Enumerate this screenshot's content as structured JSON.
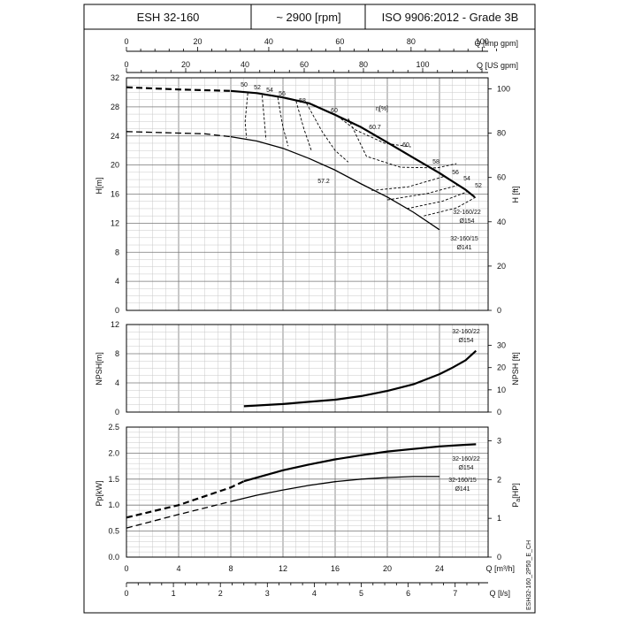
{
  "header": {
    "model": "ESH 32-160",
    "speed": "~ 2900 [rpm]",
    "standard": "ISO 9906:2012 - Grade 3B"
  },
  "axes": {
    "q_imp_label": "Q [Imp gpm]",
    "q_us_label": "Q [US gpm]",
    "q_m3h_label": "Q [m³/h]",
    "q_ls_label": "Q [l/s]",
    "h_m_label": "H[m]",
    "h_ft_label": "H [ft]",
    "npsh_m_label": "NPSH[m]",
    "npsh_ft_label": "NPSH [ft]",
    "p_kw_label": "Pp[kW]",
    "p_hp_label": "P",
    "p_hp_sub": "a",
    "p_hp_unit": "[HP]",
    "eta_label": "η[%]"
  },
  "ticks": {
    "q_imp": [
      "0",
      "20",
      "40",
      "60",
      "80",
      "100"
    ],
    "q_us": [
      "0",
      "20",
      "40",
      "60",
      "80",
      "100"
    ],
    "q_m3h": [
      "0",
      "4",
      "8",
      "12",
      "16",
      "20",
      "24"
    ],
    "q_ls": [
      "0",
      "1",
      "2",
      "3",
      "4",
      "5",
      "6",
      "7"
    ],
    "h_m": [
      "0",
      "4",
      "8",
      "12",
      "16",
      "20",
      "24",
      "28",
      "32"
    ],
    "h_ft": [
      "0",
      "20",
      "40",
      "60",
      "80",
      "100"
    ],
    "npsh_m": [
      "0",
      "4",
      "8",
      "12"
    ],
    "npsh_ft": [
      "0",
      "10",
      "20",
      "30"
    ],
    "p_kw": [
      "0.0",
      "0.5",
      "1.0",
      "1.5",
      "2.0",
      "2.5"
    ],
    "p_hp": [
      "0",
      "1",
      "2",
      "3"
    ]
  },
  "labels": {
    "impeller_large": [
      "32-160/22",
      "Ø154"
    ],
    "impeller_small": [
      "32-160/15",
      "Ø141"
    ],
    "eff_top": [
      "50",
      "52",
      "54",
      "56",
      "58",
      "60",
      "60.7",
      "60",
      "58",
      "56",
      "54",
      "52"
    ],
    "eff_low": "57.2"
  },
  "drawing_code": "ESH32-160_2P50_E_CH",
  "chart_data": [
    {
      "type": "line",
      "title": "",
      "xlabel": "Q [m³/h]",
      "ylabel": "H[m]",
      "xlim": [
        0,
        28
      ],
      "ylim": [
        0,
        32
      ],
      "series": [
        {
          "name": "32-160/22 Ø154",
          "x": [
            0,
            4,
            8,
            10,
            12,
            14,
            16,
            18,
            20,
            22,
            24,
            26,
            26.7
          ],
          "y": [
            30.7,
            30.4,
            30.2,
            29.9,
            29.3,
            28.5,
            26.9,
            25.2,
            23.1,
            21.0,
            18.9,
            16.6,
            15.6
          ]
        },
        {
          "name": "32-160/15 Ø141",
          "x": [
            0,
            4,
            6,
            8,
            10,
            12,
            14,
            16,
            18,
            20,
            22,
            24
          ],
          "y": [
            24.6,
            24.4,
            24.3,
            23.9,
            23.3,
            22.3,
            20.9,
            19.3,
            17.4,
            15.6,
            13.5,
            11.1
          ]
        },
        {
          "name": "η = 50",
          "x": [
            9.3,
            9.1,
            9.2
          ],
          "y": [
            29.9,
            26.0,
            23.7
          ]
        },
        {
          "name": "η = 52",
          "x": [
            10.4,
            10.6,
            10.7
          ],
          "y": [
            29.6,
            25.5,
            23.5
          ]
        },
        {
          "name": "η = 54",
          "x": [
            11.6,
            12.0,
            12.4
          ],
          "y": [
            29.3,
            25.2,
            22.6
          ]
        },
        {
          "name": "η = 56",
          "x": [
            13.0,
            13.6,
            14.2
          ],
          "y": [
            28.8,
            25.0,
            21.9
          ]
        },
        {
          "name": "η = 58",
          "x": [
            13.8,
            15.0,
            16.0,
            17.0
          ],
          "y": [
            28.5,
            24.6,
            22.0,
            20.4
          ]
        },
        {
          "name": "η = 60",
          "x": [
            15.9,
            17.6,
            19.8,
            21.8
          ],
          "y": [
            27.1,
            24.8,
            23.0,
            22.5
          ]
        },
        {
          "name": "η = 60.7",
          "x": [
            17.0,
            18.4,
            21.0,
            23.8,
            25.3
          ],
          "y": [
            26.4,
            21.2,
            19.7,
            19.6,
            20.2
          ]
        },
        {
          "name": "η = 58 (right)",
          "x": [
            18.8,
            21.6,
            24.3
          ],
          "y": [
            16.5,
            17.0,
            18.4
          ]
        },
        {
          "name": "η = 56 (right)",
          "x": [
            20.0,
            23.1,
            25.6
          ],
          "y": [
            15.2,
            16.1,
            17.3
          ]
        },
        {
          "name": "η = 54 (right)",
          "x": [
            21.5,
            24.2,
            26.1
          ],
          "y": [
            14.0,
            15.0,
            16.3
          ]
        },
        {
          "name": "η = 52 (right)",
          "x": [
            22.8,
            25.3,
            26.8
          ],
          "y": [
            13.0,
            14.1,
            15.6
          ]
        }
      ]
    },
    {
      "type": "line",
      "title": "",
      "xlabel": "Q [m³/h]",
      "ylabel": "NPSH[m]",
      "xlim": [
        0,
        28
      ],
      "ylim": [
        0,
        12
      ],
      "series": [
        {
          "name": "32-160/22 Ø154",
          "x": [
            9,
            12,
            14,
            16,
            18,
            20,
            22,
            24,
            25,
            26,
            26.8
          ],
          "y": [
            0.8,
            1.1,
            1.4,
            1.7,
            2.2,
            2.9,
            3.8,
            5.2,
            6.1,
            7.1,
            8.4
          ]
        }
      ]
    },
    {
      "type": "line",
      "title": "",
      "xlabel": "Q [m³/h]",
      "ylabel": "Pp[kW]",
      "xlim": [
        0,
        28
      ],
      "ylim": [
        0,
        2.5
      ],
      "series": [
        {
          "name": "32-160/22 Ø154",
          "x": [
            0,
            4,
            8,
            9,
            12,
            14,
            16,
            18,
            20,
            22,
            24,
            26,
            26.8
          ],
          "y": [
            0.76,
            1.0,
            1.34,
            1.46,
            1.67,
            1.78,
            1.88,
            1.96,
            2.03,
            2.08,
            2.13,
            2.16,
            2.17
          ]
        },
        {
          "name": "32-160/15 Ø141",
          "x": [
            0,
            4,
            8,
            10,
            12,
            14,
            16,
            18,
            20,
            22,
            24
          ],
          "y": [
            0.56,
            0.82,
            1.07,
            1.19,
            1.29,
            1.38,
            1.45,
            1.5,
            1.53,
            1.55,
            1.55
          ]
        }
      ]
    }
  ]
}
